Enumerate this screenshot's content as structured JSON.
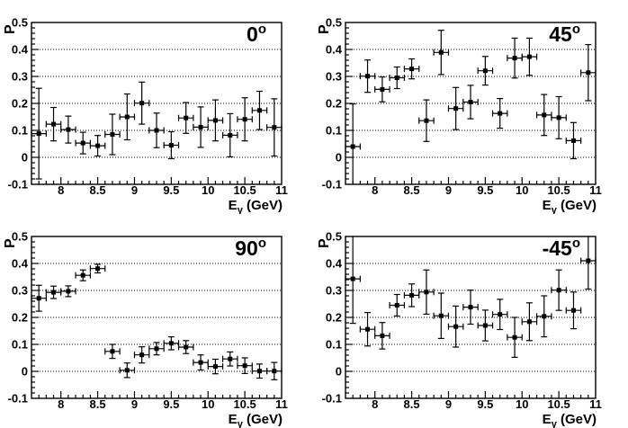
{
  "colors": {
    "foreground": "#000000",
    "background": "#ffffff",
    "grid": "#000000",
    "marker": "#000000"
  },
  "chart_data": {
    "type": "scatter",
    "layout": "2x2-grid",
    "marker": "filled-square",
    "grid": "dotted-horizontal",
    "x_axis": {
      "title_main": "E",
      "title_sub": "γ",
      "title_rest": " (GeV)",
      "min": 7.6,
      "max": 11,
      "major_ticks": [
        8,
        8.5,
        9,
        9.5,
        10,
        10.5,
        11
      ],
      "major_tick_labels": [
        "8",
        "8.5",
        "9",
        "9.5",
        "10",
        "10.5",
        "11"
      ],
      "minor_step": 0.1
    },
    "y_axis": {
      "title": "P",
      "min": -0.1,
      "max": 0.5,
      "major_ticks": [
        -0.1,
        0,
        0.1,
        0.2,
        0.3,
        0.4,
        0.5
      ],
      "major_tick_labels": [
        "-0.1",
        "0",
        "0.1",
        "0.2",
        "0.3",
        "0.4",
        "0.5"
      ],
      "minor_step": 0.02,
      "gridlines": [
        0,
        0.1,
        0.2,
        0.3,
        0.4
      ]
    },
    "x_bin_halfwidth": 0.1,
    "x_values": [
      7.7,
      7.9,
      8.1,
      8.3,
      8.5,
      8.7,
      8.9,
      9.1,
      9.3,
      9.5,
      9.7,
      9.9,
      10.1,
      10.3,
      10.5,
      10.7,
      10.9
    ],
    "panels": [
      {
        "id": "0deg",
        "angle_label": "0",
        "angle_superscript": "o",
        "y": [
          0.088,
          0.123,
          0.103,
          0.053,
          0.043,
          0.085,
          0.15,
          0.201,
          0.1,
          0.045,
          0.146,
          0.112,
          0.137,
          0.082,
          0.141,
          0.174,
          0.111
        ],
        "y_err": [
          0.168,
          0.062,
          0.05,
          0.04,
          0.038,
          0.075,
          0.085,
          0.078,
          0.064,
          0.05,
          0.057,
          0.075,
          0.076,
          0.08,
          0.08,
          0.071,
          0.106
        ]
      },
      {
        "id": "45deg",
        "angle_label": "45",
        "angle_superscript": "o",
        "y": [
          0.04,
          0.301,
          0.252,
          0.295,
          0.328,
          0.136,
          0.389,
          0.181,
          0.205,
          0.321,
          0.163,
          0.368,
          0.373,
          0.157,
          0.147,
          0.062,
          0.314
        ],
        "y_err": [
          0.158,
          0.06,
          0.046,
          0.04,
          0.037,
          0.077,
          0.082,
          0.078,
          0.062,
          0.053,
          0.055,
          0.074,
          0.069,
          0.076,
          0.078,
          0.067,
          0.104
        ]
      },
      {
        "id": "90deg",
        "angle_label": "90",
        "angle_superscript": "o",
        "y": [
          0.271,
          0.293,
          0.297,
          0.356,
          0.381,
          0.074,
          0.004,
          0.061,
          0.084,
          0.104,
          0.09,
          0.033,
          0.018,
          0.046,
          0.021,
          0.001,
          0.001
        ],
        "y_err": [
          0.048,
          0.023,
          0.02,
          0.02,
          0.016,
          0.026,
          0.027,
          0.03,
          0.023,
          0.024,
          0.024,
          0.028,
          0.027,
          0.026,
          0.029,
          0.026,
          0.032
        ]
      },
      {
        "id": "-45deg",
        "angle_label": "-45",
        "angle_superscript": "o",
        "y": [
          0.343,
          0.156,
          0.132,
          0.245,
          0.282,
          0.294,
          0.206,
          0.166,
          0.238,
          0.17,
          0.211,
          0.126,
          0.184,
          0.204,
          0.301,
          0.226,
          0.41
        ],
        "y_err": [
          0.165,
          0.062,
          0.049,
          0.04,
          0.042,
          0.082,
          0.084,
          0.076,
          0.063,
          0.057,
          0.056,
          0.074,
          0.07,
          0.076,
          0.075,
          0.068,
          0.105
        ]
      }
    ]
  }
}
